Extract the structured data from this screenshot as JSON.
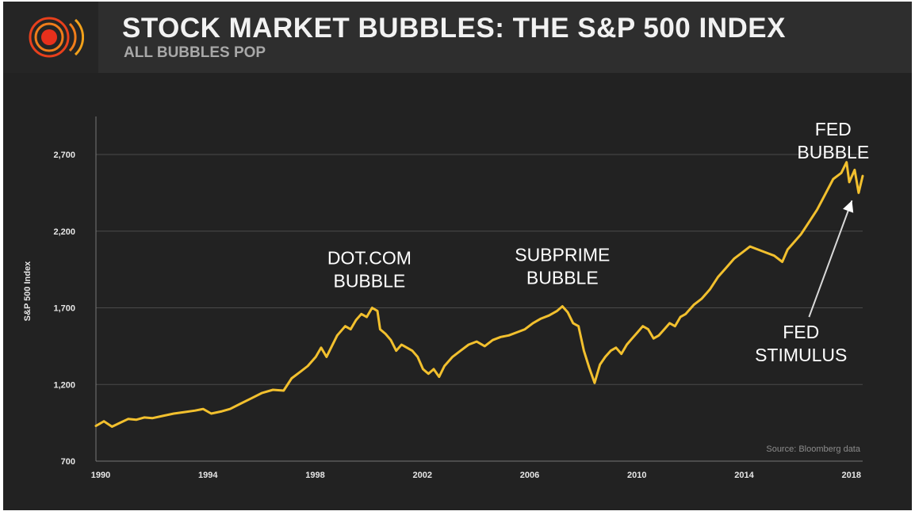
{
  "header": {
    "title": "STOCK MARKET BUBBLES: THE S&P 500 INDEX",
    "subtitle": "ALL BUBBLES POP",
    "logo": "broadcast-signal-icon"
  },
  "colors": {
    "line": "#f2c02e",
    "background": "#222222",
    "header": "#2e2e2e",
    "accent": "#e8401c"
  },
  "chart_data": {
    "type": "line",
    "title": "STOCK MARKET BUBBLES: THE S&P 500 INDEX",
    "subtitle": "ALL BUBBLES POP",
    "xlabel": "",
    "ylabel": "S&P 500 Index",
    "xlim": [
      1990,
      2018.6
    ],
    "ylim": [
      700,
      3000
    ],
    "xticks": [
      1990,
      1994,
      1998,
      2002,
      2006,
      2010,
      2014,
      2018
    ],
    "xtick_labels": [
      "1990",
      "1994",
      "1998",
      "2002",
      "2006",
      "2010",
      "2014",
      "2018"
    ],
    "yticks": [
      700,
      1200,
      1700,
      2200,
      2700
    ],
    "ytick_labels": [
      "700",
      "1,200",
      "1,700",
      "2,200",
      "2,700"
    ],
    "grid": "horizontal",
    "source": "Source: Bloomberg data",
    "annotations": [
      {
        "lines": [
          "DOT.COM",
          "BUBBLE"
        ],
        "x": 2000.2,
        "y": 1985
      },
      {
        "lines": [
          "SUBPRIME",
          "BUBBLE"
        ],
        "x": 2007.4,
        "y": 2005
      },
      {
        "lines": [
          "FED",
          "BUBBLE"
        ],
        "x": 2017.5,
        "y": 2825
      },
      {
        "lines": [
          "FED",
          "STIMULUS"
        ],
        "x": 2016.3,
        "y": 1500
      }
    ],
    "arrow": {
      "from": [
        2016.6,
        1640
      ],
      "to": [
        2018.2,
        2400
      ]
    },
    "series": [
      {
        "name": "S&P 500",
        "x": [
          1990.0,
          1990.3,
          1990.6,
          1990.9,
          1991.2,
          1991.5,
          1991.8,
          1992.1,
          1992.5,
          1992.9,
          1993.3,
          1993.7,
          1994.0,
          1994.3,
          1994.7,
          1995.0,
          1995.4,
          1995.8,
          1996.2,
          1996.6,
          1997.0,
          1997.3,
          1997.6,
          1997.9,
          1998.2,
          1998.4,
          1998.6,
          1998.8,
          1999.0,
          1999.3,
          1999.5,
          1999.7,
          1999.9,
          2000.1,
          2000.3,
          2000.5,
          2000.6,
          2000.8,
          2001.0,
          2001.2,
          2001.4,
          2001.6,
          2001.8,
          2002.0,
          2002.2,
          2002.4,
          2002.6,
          2002.8,
          2003.0,
          2003.3,
          2003.6,
          2003.9,
          2004.2,
          2004.5,
          2004.8,
          2005.1,
          2005.4,
          2005.7,
          2006.0,
          2006.3,
          2006.6,
          2006.9,
          2007.2,
          2007.4,
          2007.6,
          2007.8,
          2008.0,
          2008.2,
          2008.4,
          2008.6,
          2008.8,
          2009.0,
          2009.2,
          2009.4,
          2009.6,
          2009.8,
          2010.0,
          2010.2,
          2010.4,
          2010.6,
          2010.8,
          2011.0,
          2011.2,
          2011.4,
          2011.6,
          2011.8,
          2012.0,
          2012.3,
          2012.6,
          2012.9,
          2013.2,
          2013.5,
          2013.8,
          2014.1,
          2014.4,
          2014.7,
          2015.0,
          2015.3,
          2015.6,
          2015.8,
          2016.0,
          2016.3,
          2016.6,
          2016.9,
          2017.2,
          2017.5,
          2017.8,
          2018.0,
          2018.1,
          2018.3,
          2018.45,
          2018.6
        ],
        "values": [
          930,
          960,
          925,
          950,
          975,
          970,
          985,
          980,
          995,
          1010,
          1020,
          1030,
          1040,
          1010,
          1025,
          1040,
          1075,
          1110,
          1145,
          1165,
          1160,
          1240,
          1280,
          1320,
          1380,
          1440,
          1380,
          1450,
          1520,
          1580,
          1560,
          1620,
          1660,
          1640,
          1700,
          1680,
          1560,
          1530,
          1490,
          1420,
          1460,
          1440,
          1420,
          1380,
          1300,
          1270,
          1300,
          1250,
          1320,
          1380,
          1420,
          1460,
          1480,
          1450,
          1490,
          1510,
          1520,
          1540,
          1560,
          1600,
          1630,
          1650,
          1680,
          1710,
          1670,
          1600,
          1580,
          1420,
          1310,
          1210,
          1330,
          1380,
          1420,
          1440,
          1400,
          1460,
          1500,
          1540,
          1580,
          1560,
          1500,
          1520,
          1560,
          1600,
          1580,
          1640,
          1660,
          1720,
          1760,
          1820,
          1900,
          1960,
          2020,
          2060,
          2100,
          2080,
          2060,
          2040,
          2000,
          2080,
          2120,
          2180,
          2260,
          2340,
          2440,
          2540,
          2580,
          2650,
          2520,
          2600,
          2450,
          2560
        ]
      }
    ]
  }
}
